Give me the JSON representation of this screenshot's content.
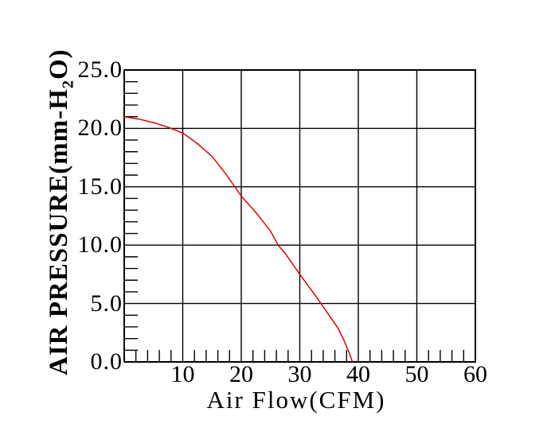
{
  "page": {
    "background": "#ffffff"
  },
  "chart_data": {
    "type": "line",
    "title": "",
    "xlabel": "Air Flow(CFM)",
    "ylabel": "AIR PRESSURE(mm-H2O)",
    "ylabel_parts": {
      "pre": "AIR PRESSURE(mm-H",
      "sub": "2",
      "post": "O)"
    },
    "xlim": [
      0,
      60
    ],
    "ylim": [
      0,
      25
    ],
    "x_major_ticks": [
      10,
      20,
      30,
      40,
      50,
      60
    ],
    "x_tick_labels": [
      "10",
      "20",
      "30",
      "40",
      "50",
      "60"
    ],
    "x_minor_step": 2,
    "y_major_ticks": [
      0,
      5,
      10,
      15,
      20,
      25
    ],
    "y_tick_labels": [
      "0.0",
      "5.0",
      "10.0",
      "15.0",
      "20.0",
      "25.0"
    ],
    "y_minor_step": 1,
    "grid": true,
    "legend": false,
    "colors": {
      "curve": "#e00000",
      "axis": "#000000",
      "text": "#000000",
      "background": "#ffffff"
    },
    "series": [
      {
        "name": "pressure-vs-airflow",
        "color": "#e00000",
        "points": [
          [
            0,
            21.0
          ],
          [
            2.5,
            20.8
          ],
          [
            5,
            20.5
          ],
          [
            7.5,
            20.1
          ],
          [
            10,
            19.6
          ],
          [
            12.5,
            18.7
          ],
          [
            15,
            17.6
          ],
          [
            17.5,
            16.0
          ],
          [
            20,
            14.2
          ],
          [
            22.5,
            12.8
          ],
          [
            25,
            11.2
          ],
          [
            26.3,
            10.0
          ],
          [
            27.5,
            9.3
          ],
          [
            30,
            7.5
          ],
          [
            32.5,
            5.8
          ],
          [
            34.6,
            4.3
          ],
          [
            36.5,
            2.9
          ],
          [
            37.5,
            1.9
          ],
          [
            38.5,
            0.7
          ],
          [
            39,
            0
          ]
        ]
      }
    ]
  },
  "layout_note": "fan static pressure vs air flow performance curve"
}
